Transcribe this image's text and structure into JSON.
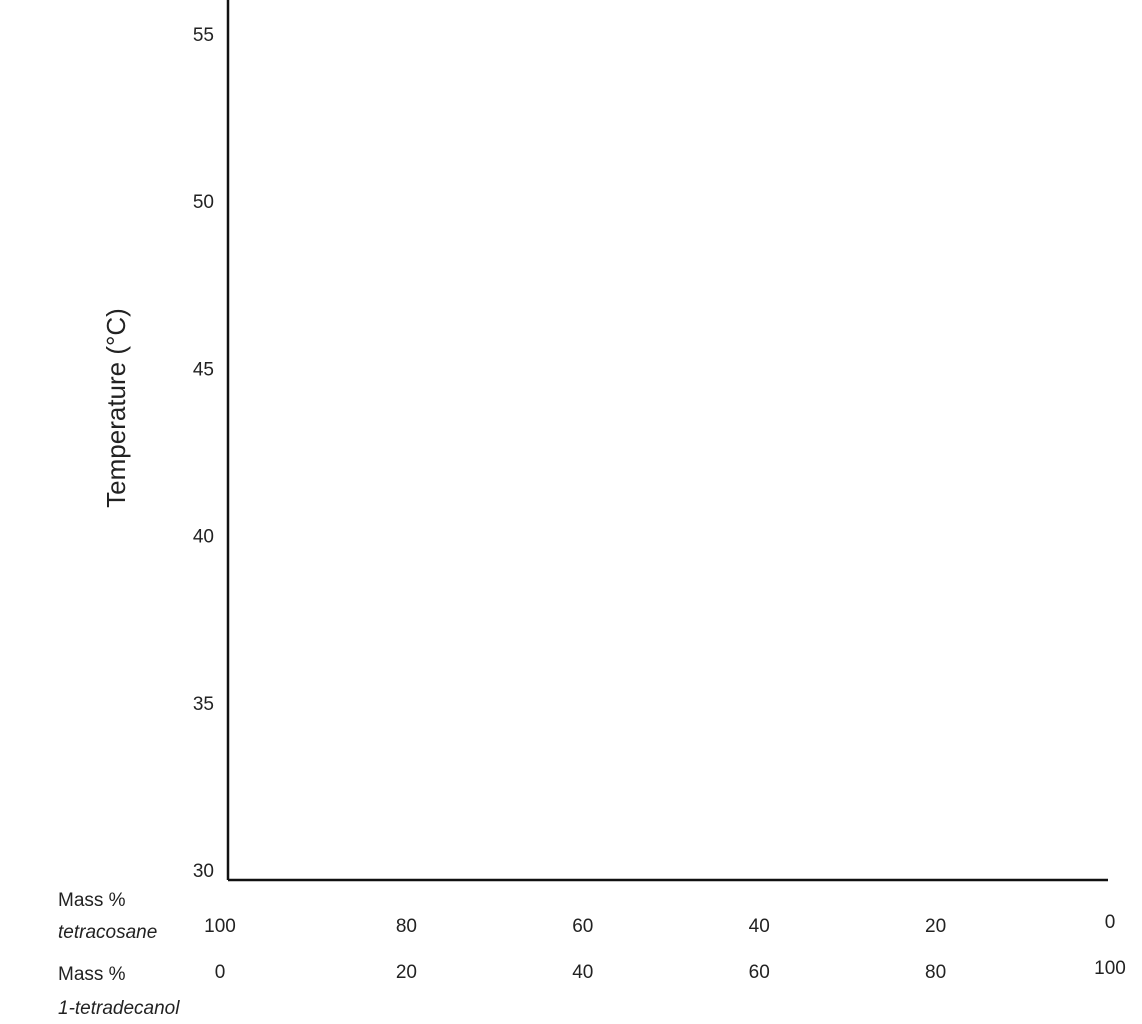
{
  "chart_data": {
    "type": "line",
    "title": "",
    "ylabel": "Temperature (°C)",
    "ylim": [
      30,
      55
    ],
    "y_ticks": [
      30,
      35,
      40,
      45,
      50,
      55
    ],
    "grid": false,
    "x_axes": [
      {
        "label_line1": "Mass %",
        "label_line2": "tetracosane",
        "ticks": [
          100,
          80,
          60,
          40,
          20,
          0
        ]
      },
      {
        "label_line1": "Mass %",
        "label_line2": "1-tetradecanol",
        "ticks": [
          0,
          20,
          40,
          60,
          80,
          100
        ]
      }
    ],
    "series": []
  }
}
